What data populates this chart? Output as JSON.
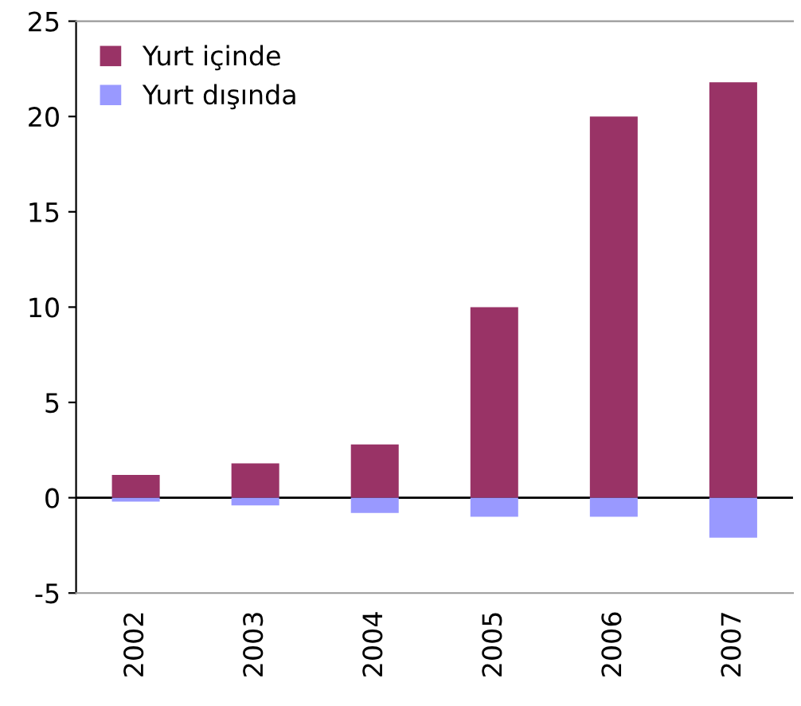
{
  "chart_data": {
    "type": "bar",
    "stacked": true,
    "categories": [
      "2002",
      "2003",
      "2004",
      "2005",
      "2006",
      "2007"
    ],
    "series": [
      {
        "name": "Yurt içinde",
        "color": "#993366",
        "values": [
          1.2,
          1.8,
          2.8,
          10,
          20,
          21.8
        ]
      },
      {
        "name": "Yurt dışında",
        "color": "#9999ff",
        "values": [
          -0.2,
          -0.4,
          -0.8,
          -1.0,
          -1.0,
          -2.1
        ]
      }
    ],
    "ylim": [
      -5,
      25
    ],
    "yticks": [
      -5,
      0,
      5,
      10,
      15,
      20,
      25
    ],
    "legend": "top left"
  }
}
